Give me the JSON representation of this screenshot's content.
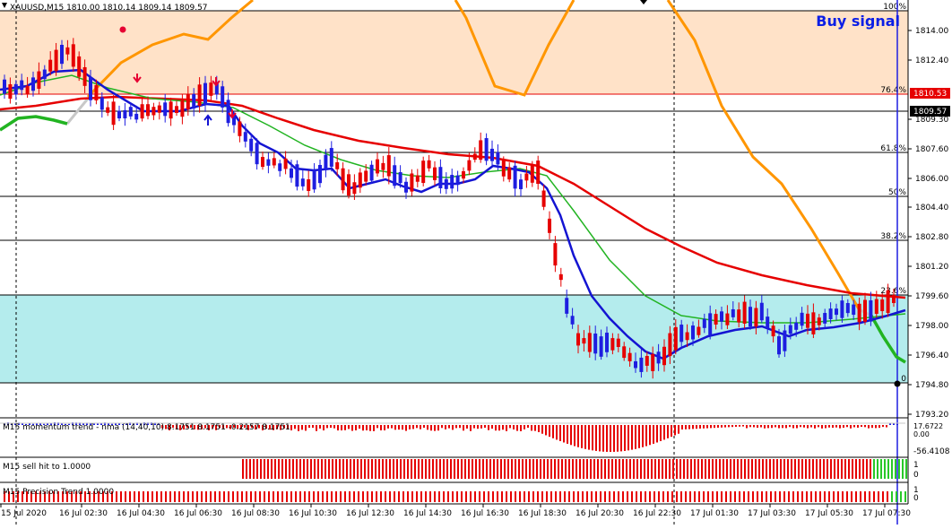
{
  "window": {
    "title": "XAUUSD,M15  1810.00 1810.14 1809.14 1809.57",
    "buy_signal": "Buy signal"
  },
  "price_axis": {
    "labels": [
      "1814.00",
      "1812.40",
      "1809.30",
      "1807.60",
      "1806.00",
      "1804.40",
      "1802.80",
      "1801.20",
      "1799.60",
      "1798.00",
      "1796.40",
      "1794.80",
      "1793.20"
    ],
    "tag_current": "1810.53",
    "tag_last": "1809.57"
  },
  "fib_levels": [
    {
      "label": "100%"
    },
    {
      "label": "76.4%"
    },
    {
      "label": "61.8%"
    },
    {
      "label": "50%"
    },
    {
      "label": "38.2%"
    },
    {
      "label": "23.6%"
    },
    {
      "label": "0"
    }
  ],
  "time_axis": {
    "labels": [
      "15 Jul 2020",
      "16 Jul 02:30",
      "16 Jul 04:30",
      "16 Jul 06:30",
      "16 Jul 08:30",
      "16 Jul 10:30",
      "16 Jul 12:30",
      "16 Jul 14:30",
      "16 Jul 16:30",
      "16 Jul 18:30",
      "16 Jul 20:30",
      "16 Jul 22:30",
      "17 Jul 01:30",
      "17 Jul 03:30",
      "17 Jul 05:30",
      "17 Jul 07:30"
    ]
  },
  "indicators": {
    "momentum": {
      "title": "M15 momentum trend - nma (14,40,10) 8.1751 8.1751 -0.2157 8.1751",
      "axis_top": "17.6722",
      "axis_zero": "0.00",
      "axis_bottom": "-56.4108"
    },
    "sell_hit": {
      "title": "M15 sell hit to 1.0000",
      "axis_top": "1",
      "axis_bottom": "0"
    },
    "precision": {
      "title": "M15 Precision Trend 1.0000",
      "axis_top": "1",
      "axis_bottom": "0"
    }
  },
  "colors": {
    "bull": "#1e1ee0",
    "bear": "#e60000",
    "ma_red": "#e60000",
    "ma_green": "#22b422",
    "ma_blue": "#1414d2",
    "orange": "#ff9600",
    "peach_zone": "#ffe2c8",
    "cyan_zone": "#b4eced"
  }
}
